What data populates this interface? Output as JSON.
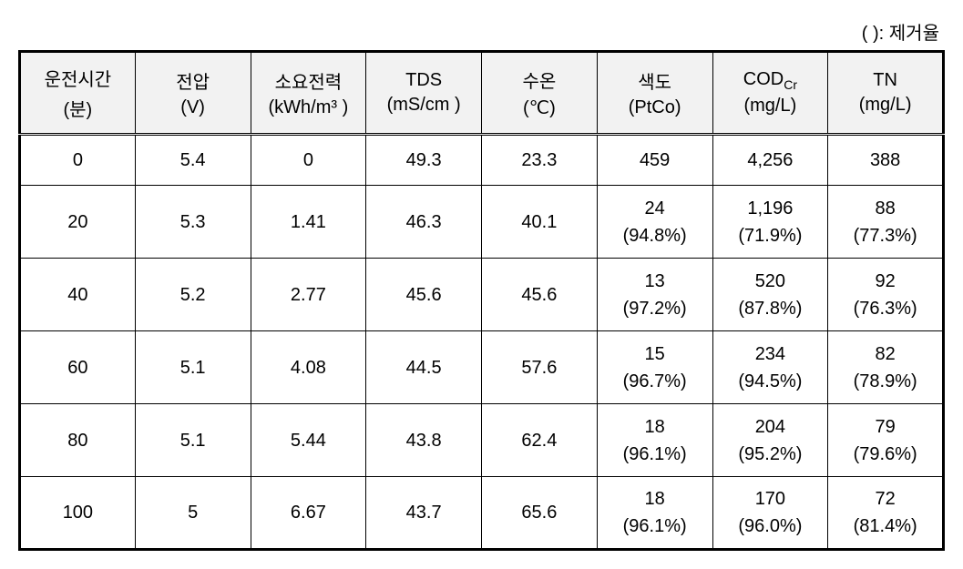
{
  "note_label": "(   ): 제거율",
  "columns": [
    {
      "main": "운전시간",
      "sub": "(분)"
    },
    {
      "main": "전압",
      "sub": "(V)"
    },
    {
      "main": "소요전력",
      "sub": "(kWh/m³\n)"
    },
    {
      "main": "TDS",
      "sub": "(mS/cm\n)"
    },
    {
      "main": "수온",
      "sub": "(℃)"
    },
    {
      "main": "색도",
      "sub": "(PtCo)"
    },
    {
      "main": "CODcr",
      "sub": "(mg/L)"
    },
    {
      "main": "TN",
      "sub": "(mg/L)"
    }
  ],
  "rows": [
    {
      "t": "0",
      "voltage": "5.4",
      "power": "0",
      "tds": "49.3",
      "temp": "23.3",
      "color": {
        "v": "459"
      },
      "cod": {
        "v": "4,256"
      },
      "tn": {
        "v": "388"
      }
    },
    {
      "t": "20",
      "voltage": "5.3",
      "power": "1.41",
      "tds": "46.3",
      "temp": "40.1",
      "color": {
        "v": "24",
        "r": "(94.8%)"
      },
      "cod": {
        "v": "1,196",
        "r": "(71.9%)"
      },
      "tn": {
        "v": "88",
        "r": "(77.3%)"
      }
    },
    {
      "t": "40",
      "voltage": "5.2",
      "power": "2.77",
      "tds": "45.6",
      "temp": "45.6",
      "color": {
        "v": "13",
        "r": "(97.2%)"
      },
      "cod": {
        "v": "520",
        "r": "(87.8%)"
      },
      "tn": {
        "v": "92",
        "r": "(76.3%)"
      }
    },
    {
      "t": "60",
      "voltage": "5.1",
      "power": "4.08",
      "tds": "44.5",
      "temp": "57.6",
      "color": {
        "v": "15",
        "r": "(96.7%)"
      },
      "cod": {
        "v": "234",
        "r": "(94.5%)"
      },
      "tn": {
        "v": "82",
        "r": "(78.9%)"
      }
    },
    {
      "t": "80",
      "voltage": "5.1",
      "power": "5.44",
      "tds": "43.8",
      "temp": "62.4",
      "color": {
        "v": "18",
        "r": "(96.1%)"
      },
      "cod": {
        "v": "204",
        "r": "(95.2%)"
      },
      "tn": {
        "v": "79",
        "r": "(79.6%)"
      }
    },
    {
      "t": "100",
      "voltage": "5",
      "power": "6.67",
      "tds": "43.7",
      "temp": "65.6",
      "color": {
        "v": "18",
        "r": "(96.1%)"
      },
      "cod": {
        "v": "170",
        "r": "(96.0%)"
      },
      "tn": {
        "v": "72",
        "r": "(81.4%)"
      }
    }
  ]
}
